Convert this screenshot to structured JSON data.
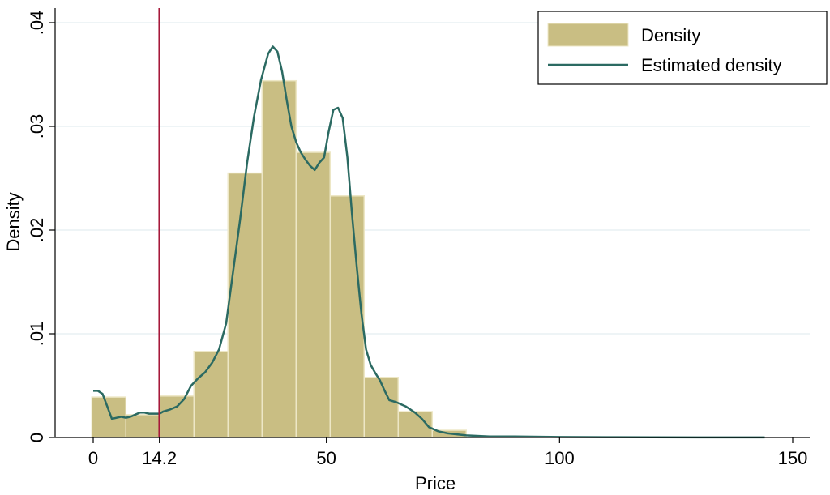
{
  "chart_data": {
    "type": "bar",
    "xlabel": "Price",
    "ylabel": "Density",
    "xlim": [
      0,
      150
    ],
    "ylim": [
      0,
      0.04
    ],
    "x_ticks": [
      {
        "value": 0,
        "label": "0"
      },
      {
        "value": 14.2,
        "label": "14.2"
      },
      {
        "value": 50,
        "label": "50"
      },
      {
        "value": 100,
        "label": "100"
      },
      {
        "value": 150,
        "label": "150"
      }
    ],
    "y_ticks": [
      {
        "value": 0,
        "label": "0"
      },
      {
        "value": 0.01,
        "label": ".01"
      },
      {
        "value": 0.02,
        "label": ".02"
      },
      {
        "value": 0.03,
        "label": ".03"
      },
      {
        "value": 0.04,
        "label": ".04"
      }
    ],
    "grid": "horizontal",
    "legend_position": "top-right",
    "reference_line": {
      "x": 14.2,
      "color": "#a6183a"
    },
    "series": [
      {
        "name": "Density",
        "kind": "histogram",
        "color": "#c9be83",
        "edge_color": "#ede7c6",
        "bins": [
          {
            "from": -0.3,
            "to": 7.0,
            "value": 0.0039
          },
          {
            "from": 7.0,
            "to": 14.3,
            "value": 0.0022
          },
          {
            "from": 14.3,
            "to": 21.6,
            "value": 0.004
          },
          {
            "from": 21.6,
            "to": 28.9,
            "value": 0.0083
          },
          {
            "from": 28.9,
            "to": 36.2,
            "value": 0.0255
          },
          {
            "from": 36.2,
            "to": 43.5,
            "value": 0.0344
          },
          {
            "from": 43.5,
            "to": 50.8,
            "value": 0.0275
          },
          {
            "from": 50.8,
            "to": 58.1,
            "value": 0.0233
          },
          {
            "from": 58.1,
            "to": 65.4,
            "value": 0.0058
          },
          {
            "from": 65.4,
            "to": 72.7,
            "value": 0.0025
          },
          {
            "from": 72.7,
            "to": 80.0,
            "value": 0.0007
          }
        ]
      },
      {
        "name": "Estimated density",
        "kind": "line",
        "color": "#2b6a62",
        "points": [
          [
            0.0,
            0.0045
          ],
          [
            1.0,
            0.0045
          ],
          [
            2.0,
            0.0042
          ],
          [
            3.0,
            0.003
          ],
          [
            4.0,
            0.0018
          ],
          [
            5.0,
            0.0019
          ],
          [
            6.0,
            0.002
          ],
          [
            7.0,
            0.0019
          ],
          [
            8.0,
            0.002
          ],
          [
            9.0,
            0.0022
          ],
          [
            10.0,
            0.0024
          ],
          [
            11.0,
            0.0024
          ],
          [
            12.0,
            0.0023
          ],
          [
            13.0,
            0.0023
          ],
          [
            14.2,
            0.0023
          ],
          [
            15.0,
            0.0025
          ],
          [
            16.5,
            0.0027
          ],
          [
            18.0,
            0.003
          ],
          [
            19.5,
            0.0037
          ],
          [
            21.0,
            0.005
          ],
          [
            22.5,
            0.0057
          ],
          [
            24.0,
            0.0063
          ],
          [
            25.5,
            0.0072
          ],
          [
            27.0,
            0.0085
          ],
          [
            28.5,
            0.011
          ],
          [
            30.0,
            0.016
          ],
          [
            31.5,
            0.021
          ],
          [
            33.0,
            0.0265
          ],
          [
            34.5,
            0.031
          ],
          [
            36.0,
            0.0345
          ],
          [
            37.5,
            0.037
          ],
          [
            38.5,
            0.0377
          ],
          [
            39.5,
            0.0372
          ],
          [
            40.5,
            0.0353
          ],
          [
            41.5,
            0.0325
          ],
          [
            42.5,
            0.03
          ],
          [
            43.5,
            0.0285
          ],
          [
            44.5,
            0.0275
          ],
          [
            45.5,
            0.0268
          ],
          [
            46.5,
            0.0262
          ],
          [
            47.5,
            0.0258
          ],
          [
            48.5,
            0.0265
          ],
          [
            49.5,
            0.027
          ],
          [
            50.5,
            0.0295
          ],
          [
            51.5,
            0.0316
          ],
          [
            52.5,
            0.0318
          ],
          [
            53.5,
            0.0308
          ],
          [
            54.5,
            0.027
          ],
          [
            55.5,
            0.0215
          ],
          [
            56.5,
            0.0165
          ],
          [
            57.5,
            0.012
          ],
          [
            58.5,
            0.0085
          ],
          [
            59.5,
            0.007
          ],
          [
            60.5,
            0.0062
          ],
          [
            61.5,
            0.0055
          ],
          [
            62.5,
            0.0045
          ],
          [
            63.5,
            0.0036
          ],
          [
            65.0,
            0.0034
          ],
          [
            67.0,
            0.003
          ],
          [
            69.0,
            0.0024
          ],
          [
            70.5,
            0.0018
          ],
          [
            72.0,
            0.001
          ],
          [
            74.0,
            0.0006
          ],
          [
            76.0,
            0.0004
          ],
          [
            80.0,
            0.0002
          ],
          [
            85.0,
            0.0001
          ],
          [
            90.0,
            0.0001
          ],
          [
            100.0,
            5e-05
          ],
          [
            110.0,
            3e-05
          ],
          [
            120.0,
            2e-05
          ],
          [
            130.0,
            1e-05
          ],
          [
            144.0,
            1e-05
          ]
        ]
      }
    ]
  }
}
